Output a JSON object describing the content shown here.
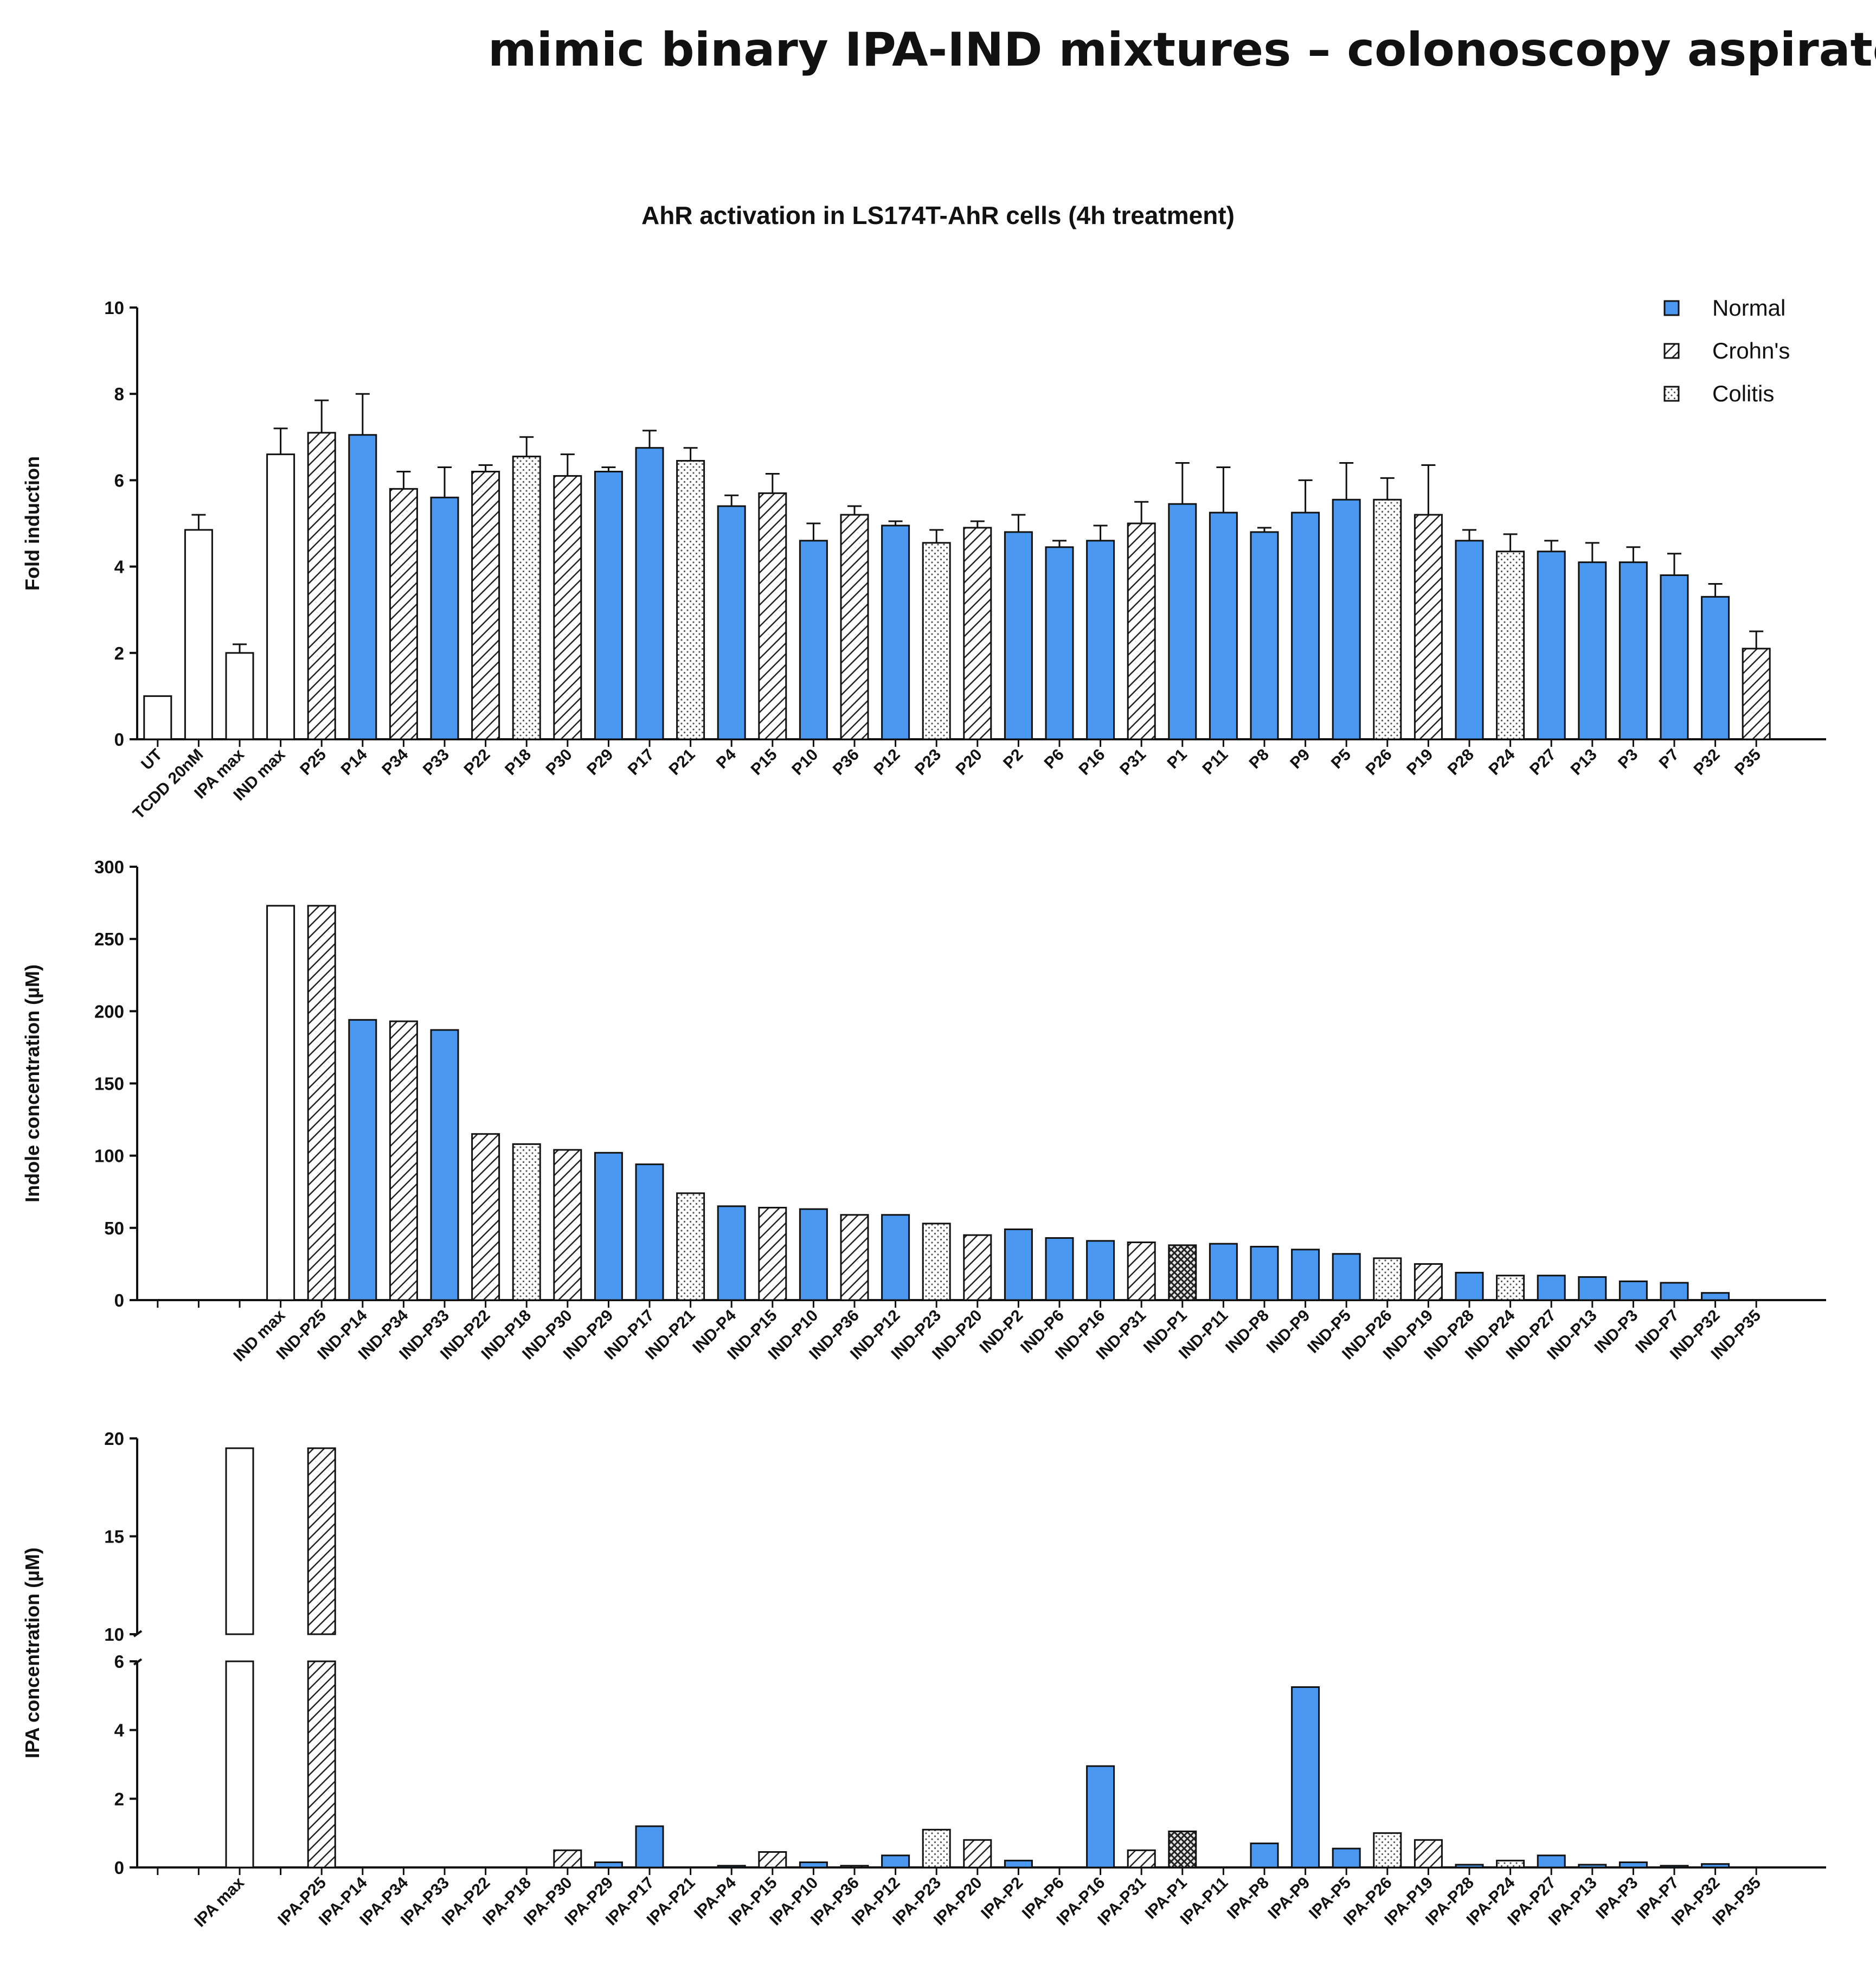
{
  "page": {
    "title": "mimic binary IPA-IND mixtures – colonoscopy aspirates"
  },
  "colors": {
    "normal": "#4a98f0",
    "crohns_hatch": "#222222",
    "colitis_dots": "#555555",
    "control": "#ffffff",
    "axis": "#111111"
  },
  "legend": {
    "items": [
      {
        "key": "N",
        "label": "Normal"
      },
      {
        "key": "C",
        "label": "Crohn's"
      },
      {
        "key": "U",
        "label": "Colitis"
      }
    ]
  },
  "chart_data": [
    {
      "type": "bar",
      "title": "AhR activation in LS174T-AhR cells (4h treatment)",
      "xlabel": "",
      "ylabel": "Fold induction",
      "ylim": [
        0,
        10
      ],
      "yticks": [
        "0",
        "2",
        "4",
        "6",
        "8",
        "10"
      ],
      "error_bars": true,
      "categories": [
        "UT",
        "TCDD 20nM",
        "IPA max",
        "IND max",
        "P25",
        "P14",
        "P34",
        "P33",
        "P22",
        "P18",
        "P30",
        "P29",
        "P17",
        "P21",
        "P4",
        "P15",
        "P10",
        "P36",
        "P12",
        "P23",
        "P20",
        "P2",
        "P6",
        "P16",
        "P31",
        "P1",
        "P11",
        "P8",
        "P9",
        "P5",
        "P26",
        "P19",
        "P28",
        "P24",
        "P27",
        "P13",
        "P3",
        "P7",
        "P32",
        "P35"
      ],
      "groups": [
        "W",
        "W",
        "W",
        "W",
        "C",
        "N",
        "C",
        "N",
        "C",
        "U",
        "C",
        "N",
        "N",
        "U",
        "N",
        "C",
        "N",
        "C",
        "N",
        "U",
        "C",
        "N",
        "N",
        "N",
        "C",
        "N",
        "N",
        "N",
        "N",
        "N",
        "U",
        "C",
        "N",
        "U",
        "N",
        "N",
        "N",
        "N",
        "N",
        "C"
      ],
      "values": [
        1.0,
        4.85,
        2.0,
        6.6,
        7.1,
        7.05,
        5.8,
        5.6,
        6.2,
        6.55,
        6.1,
        6.2,
        6.75,
        6.45,
        5.4,
        5.7,
        4.6,
        5.2,
        4.95,
        4.55,
        4.9,
        4.8,
        4.45,
        4.6,
        5.0,
        5.45,
        5.25,
        4.8,
        5.25,
        5.55,
        5.55,
        5.2,
        4.6,
        4.35,
        4.35,
        4.1,
        4.1,
        3.8,
        3.3,
        2.1
      ],
      "errors": [
        0.0,
        0.35,
        0.2,
        0.6,
        0.75,
        0.95,
        0.4,
        0.7,
        0.15,
        0.45,
        0.5,
        0.1,
        0.4,
        0.3,
        0.25,
        0.45,
        0.4,
        0.2,
        0.1,
        0.3,
        0.15,
        0.4,
        0.15,
        0.35,
        0.5,
        0.95,
        1.05,
        0.1,
        0.75,
        0.85,
        0.5,
        1.15,
        0.25,
        0.4,
        0.25,
        0.45,
        0.35,
        0.5,
        0.3,
        0.4
      ]
    },
    {
      "type": "bar",
      "title": "",
      "xlabel": "",
      "ylabel": "Indole concentration (µM)",
      "ylim": [
        0,
        300
      ],
      "yticks": [
        "0",
        "50",
        "100",
        "150",
        "200",
        "250",
        "300"
      ],
      "categories": [
        "",
        "",
        "",
        "IND max",
        "IND-P25",
        "IND-P14",
        "IND-P34",
        "IND-P33",
        "IND-P22",
        "IND-P18",
        "IND-P30",
        "IND-P29",
        "IND-P17",
        "IND-P21",
        "IND-P4",
        "IND-P15",
        "IND-P10",
        "IND-P36",
        "IND-P12",
        "IND-P23",
        "IND-P20",
        "IND-P2",
        "IND-P6",
        "IND-P16",
        "IND-P31",
        "IND-P1",
        "IND-P11",
        "IND-P8",
        "IND-P9",
        "IND-P5",
        "IND-P26",
        "IND-P19",
        "IND-P28",
        "IND-P24",
        "IND-P27",
        "IND-P13",
        "IND-P3",
        "IND-P7",
        "IND-P32",
        "IND-P35"
      ],
      "groups": [
        "W",
        "W",
        "W",
        "W",
        "C",
        "N",
        "C",
        "N",
        "C",
        "U",
        "C",
        "N",
        "N",
        "U",
        "N",
        "C",
        "N",
        "C",
        "N",
        "U",
        "C",
        "N",
        "N",
        "N",
        "C",
        "X",
        "N",
        "N",
        "N",
        "N",
        "U",
        "C",
        "N",
        "U",
        "N",
        "N",
        "N",
        "N",
        "N",
        "C"
      ],
      "values": [
        0,
        0,
        0,
        273,
        273,
        194,
        193,
        187,
        115,
        108,
        104,
        102,
        94,
        74,
        65,
        64,
        63,
        59,
        59,
        53,
        45,
        49,
        43,
        41,
        40,
        38,
        39,
        37,
        35,
        32,
        29,
        25,
        19,
        17,
        17,
        16,
        13,
        12,
        5,
        0
      ]
    },
    {
      "type": "bar",
      "title": "",
      "xlabel": "",
      "ylabel": "IPA concentration (µM)",
      "ylim": [
        0,
        20
      ],
      "axis_break": [
        6,
        10
      ],
      "yticks_lower": [
        "0",
        "2",
        "4",
        "6"
      ],
      "yticks_upper": [
        "10",
        "15",
        "20"
      ],
      "categories": [
        "",
        "",
        "IPA max",
        "",
        "IPA-P25",
        "IPA-P14",
        "IPA-P34",
        "IPA-P33",
        "IPA-P22",
        "IPA-P18",
        "IPA-P30",
        "IPA-P29",
        "IPA-P17",
        "IPA-P21",
        "IPA-P4",
        "IPA-P15",
        "IPA-P10",
        "IPA-P36",
        "IPA-P12",
        "IPA-P23",
        "IPA-P20",
        "IPA-P2",
        "IPA-P6",
        "IPA-P16",
        "IPA-P31",
        "IPA-P1",
        "IPA-P11",
        "IPA-P8",
        "IPA-P9",
        "IPA-P5",
        "IPA-P26",
        "IPA-P19",
        "IPA-P28",
        "IPA-P24",
        "IPA-P27",
        "IPA-P13",
        "IPA-P3",
        "IPA-P7",
        "IPA-P32",
        "IPA-P35"
      ],
      "groups": [
        "W",
        "W",
        "W",
        "W",
        "C",
        "N",
        "C",
        "N",
        "C",
        "U",
        "C",
        "N",
        "N",
        "U",
        "N",
        "C",
        "N",
        "C",
        "N",
        "U",
        "C",
        "N",
        "N",
        "N",
        "C",
        "X",
        "N",
        "N",
        "N",
        "N",
        "U",
        "C",
        "N",
        "U",
        "N",
        "N",
        "N",
        "N",
        "N",
        "C"
      ],
      "values": [
        0,
        0,
        19.5,
        0,
        19.5,
        0,
        0,
        0,
        0,
        0,
        0.5,
        0.15,
        1.2,
        0,
        0.05,
        0.45,
        0.15,
        0.05,
        0.35,
        1.1,
        0.8,
        0.2,
        0,
        2.95,
        0.5,
        1.05,
        0,
        0.7,
        5.25,
        0.55,
        1.0,
        0.8,
        0.08,
        0.2,
        0.35,
        0.08,
        0.15,
        0.05,
        0.1,
        0
      ]
    }
  ]
}
